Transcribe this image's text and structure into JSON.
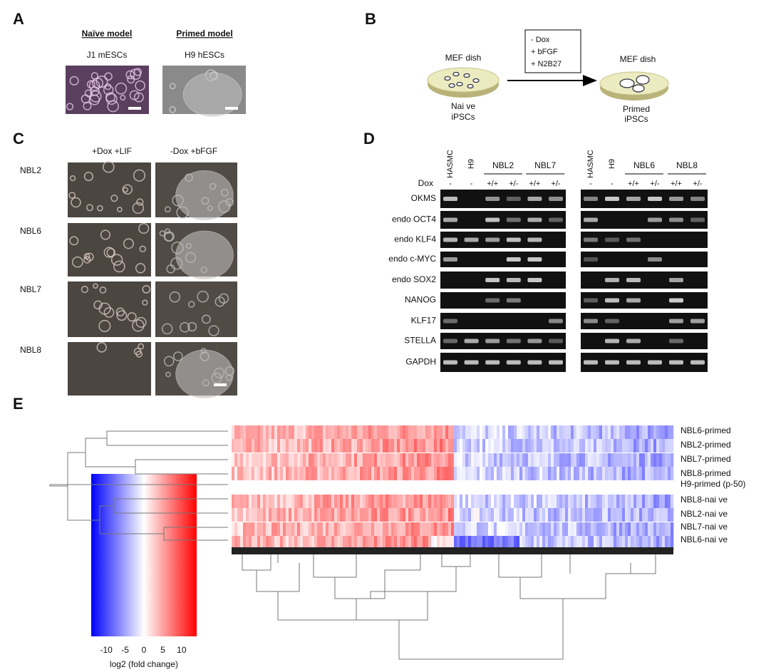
{
  "panel_a": {
    "label": "A",
    "naive_title": "Naïve model",
    "naive_cells": "J1 mESCs",
    "primed_title": "Primed  model",
    "primed_cells": "H9 hESCs"
  },
  "panel_b": {
    "label": "B",
    "conditions": [
      "- Dox",
      "+ bFGF",
      "+ N2B27"
    ],
    "left_dish": "MEF dish",
    "left_cells": [
      "Nai ve",
      "iPSCs"
    ],
    "right_dish": "MEF dish",
    "right_cells": [
      "Primed",
      "iPSCs"
    ]
  },
  "panel_c": {
    "label": "C",
    "columns": [
      "+Dox +LIF",
      "-Dox +bFGF"
    ],
    "rows": [
      "NBL2",
      "NBL6",
      "NBL7",
      "NBL8"
    ]
  },
  "panel_d": {
    "label": "D",
    "dox_label": "Dox",
    "left": {
      "controls": [
        "HASMC",
        "H9"
      ],
      "groups": [
        "NBL2",
        "NBL7"
      ],
      "dox": [
        "-",
        "-",
        "+/+",
        "+/-",
        "+/+",
        "+/-"
      ]
    },
    "right": {
      "controls": [
        "HASMC",
        "H9"
      ],
      "groups": [
        "NBL6",
        "NBL8"
      ],
      "dox": [
        "-",
        "-",
        "+/+",
        "+/-",
        "+/+",
        "+/-"
      ]
    },
    "genes": [
      "OKMS",
      "endo OCT4",
      "endo KLF4",
      "endo c-MYC",
      "endo SOX2",
      "NANOG",
      "KLF17",
      "STELLA",
      "GAPDH"
    ]
  },
  "panel_e": {
    "label": "E",
    "rows": [
      "NBL6-primed",
      "NBL2-primed",
      "NBL7-primed",
      "NBL8-primed",
      "H9-primed (p-50)",
      "NBL8-nai ve",
      "NBL2-nai ve",
      "NBL7-nai ve",
      "NBL6-nai ve"
    ],
    "colorbar_ticks": [
      -10,
      -5,
      0,
      5,
      10
    ],
    "colorbar_label": "log2 (fold change)"
  }
}
